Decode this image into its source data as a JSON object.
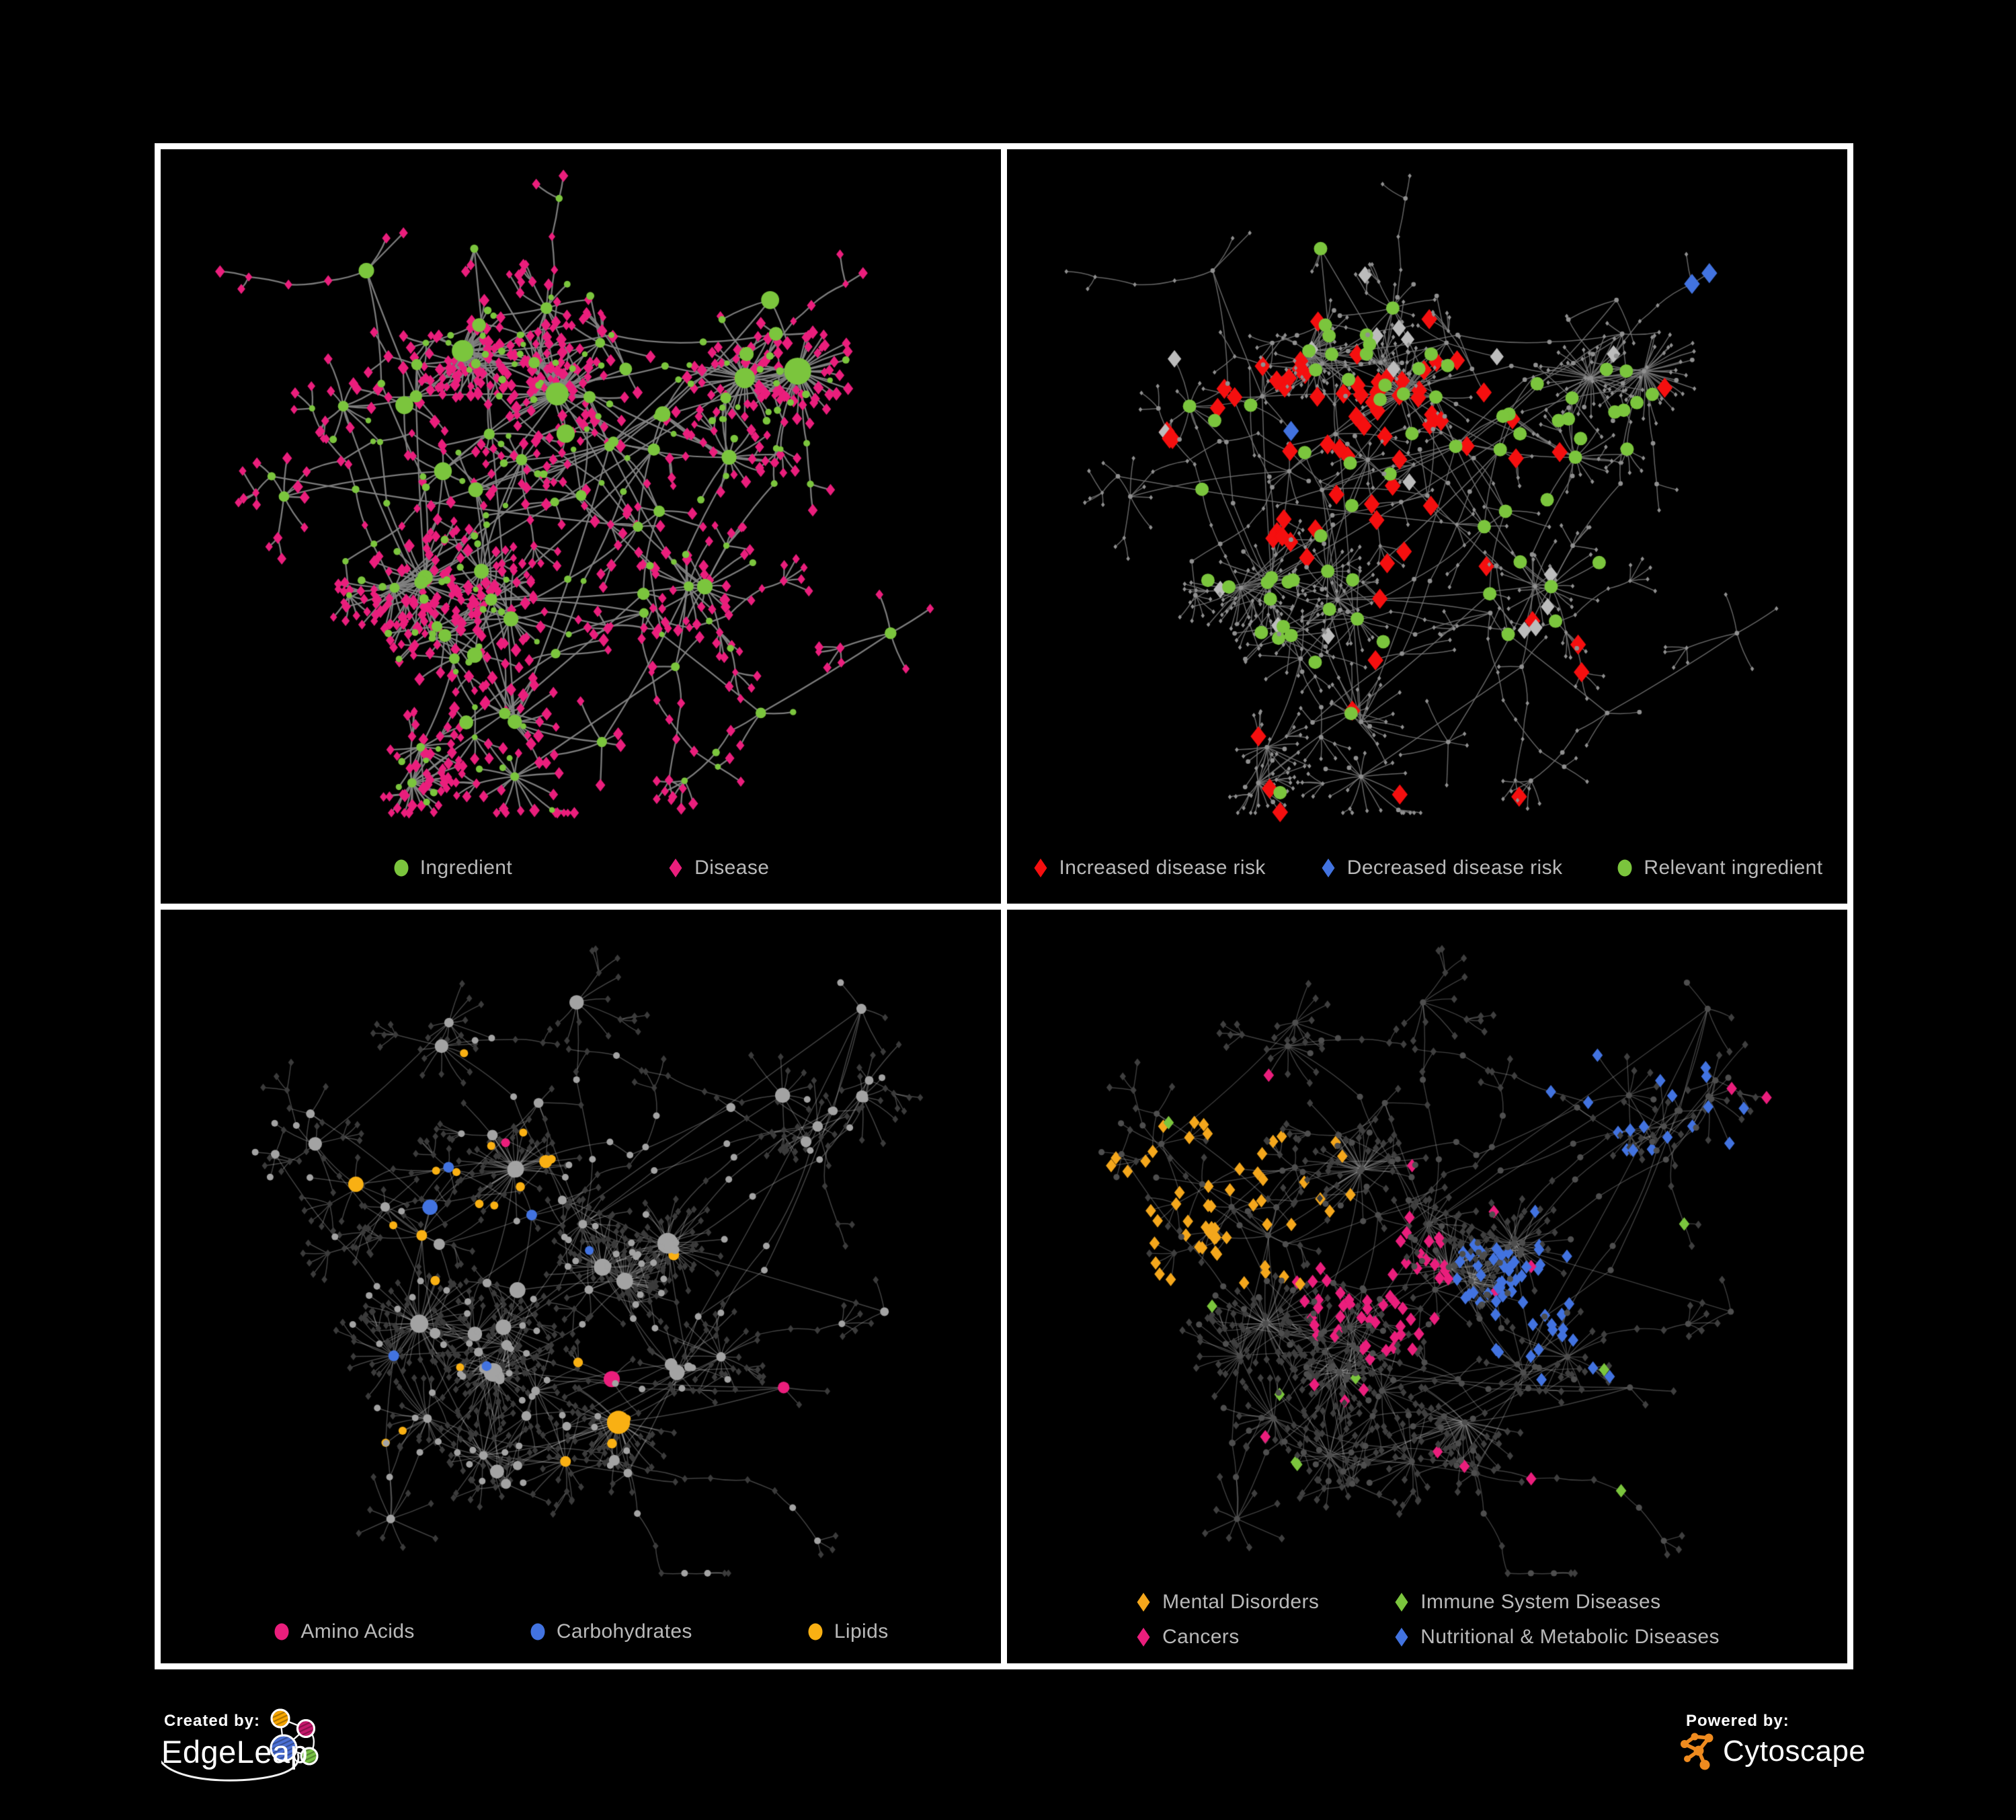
{
  "figure": {
    "background": "#000000",
    "frame_color": "#ffffff",
    "legend_text_color": "#b9b9b9"
  },
  "palette": {
    "green": "#7bc53d",
    "pink": "#ea1e7c",
    "red": "#f50f0f",
    "blue": "#4273e0",
    "orange": "#f9b013",
    "gray_highlight": "#bcbcbc"
  },
  "panels": [
    {
      "id": "ingredient-disease",
      "position": "top-left",
      "legend": {
        "items": [
          {
            "shape": "circle",
            "color": "#7bc53d",
            "label": "Ingredient"
          },
          {
            "shape": "diamond",
            "color": "#ea1e7c",
            "label": "Disease"
          }
        ]
      },
      "style": {
        "edge_color": "rgba(131,131,131,0.95)",
        "edge_width": 2.3,
        "circle_color": "#7bc53d",
        "diamond_color": "#ea1e7c"
      }
    },
    {
      "id": "disease-risk",
      "position": "top-right",
      "legend": {
        "items": [
          {
            "shape": "diamond",
            "color": "#f50f0f",
            "label": "Increased disease risk"
          },
          {
            "shape": "diamond",
            "color": "#4273e0",
            "label": "Decreased disease risk"
          },
          {
            "shape": "circle",
            "color": "#7bc53d",
            "label": "Relevant ingredient"
          }
        ]
      },
      "style": {
        "edge_color": "rgba(117,117,117,0.85)",
        "edge_width": 1.5,
        "dim_node_color": "#909090",
        "increased_color": "#f50f0f",
        "decreased_color": "#4273e0",
        "neutral_color": "#bcbcbc",
        "relevant_color": "#7bc53d"
      }
    },
    {
      "id": "ingredient-categories",
      "position": "bottom-left",
      "legend": {
        "items": [
          {
            "shape": "circle",
            "color": "#ea1e7c",
            "label": "Amino Acids"
          },
          {
            "shape": "circle",
            "color": "#4273e0",
            "label": "Carbohydrates"
          },
          {
            "shape": "circle",
            "color": "#f9b013",
            "label": "Lipids"
          }
        ]
      },
      "style": {
        "edge_color": "rgba(200,200,200,0.33)",
        "edge_width": 1.5,
        "dim_circle_color": "#a3a3a3",
        "dim_diamond_color": "#3b3b3b",
        "amino_color": "#ea1e7c",
        "carb_color": "#4273e0",
        "lipid_color": "#f9b013"
      }
    },
    {
      "id": "disease-categories",
      "position": "bottom-right",
      "legend": {
        "items": [
          {
            "shape": "diamond",
            "color": "#f4a71c",
            "label": "Mental Disorders"
          },
          {
            "shape": "diamond",
            "color": "#7bc53d",
            "label": "Immune System Diseases"
          },
          {
            "shape": "diamond",
            "color": "#ea1e7c",
            "label": "Cancers"
          },
          {
            "shape": "diamond",
            "color": "#4273e0",
            "label": "Nutritional & Metabolic Diseases"
          }
        ]
      },
      "style": {
        "edge_color": "rgba(180,180,180,0.35)",
        "edge_width": 1.4,
        "dim_circle_color": "#4e4e4e",
        "dim_diamond_color": "#3f3f3f",
        "mental_color": "#f4a71c",
        "immune_color": "#7bc53d",
        "cancer_color": "#ea1e7c",
        "metabolic_color": "#4273e0"
      }
    }
  ],
  "network": {
    "top_pair_seed": 1337,
    "bottom_pair_seed": 4242,
    "highlight_seeds": [
      11,
      22,
      33,
      44
    ]
  },
  "footer": {
    "created_by_label": "Created by:",
    "edgeleap_brand": "EdgeLeap",
    "powered_by_label": "Powered by:",
    "cytoscape_brand": "Cytoscape",
    "edgeleap_logo_colors": {
      "orange": "#f7a600",
      "pink": "#c4176b",
      "blue": "#4a6fd4",
      "green": "#76c043"
    },
    "cytoscape_logo_color": "#ef8b1f"
  }
}
